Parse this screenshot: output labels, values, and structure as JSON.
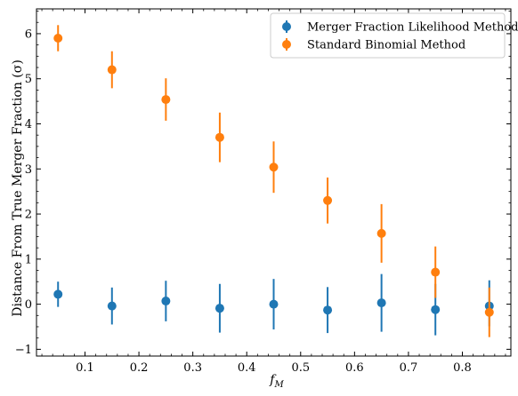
{
  "chart_data": {
    "type": "scatter",
    "title": "",
    "xlabel": "f",
    "xlabel_sub": "M",
    "ylabel": "Distance From True Merger Fraction (σ)",
    "xlim": [
      0.01,
      0.89
    ],
    "ylim": [
      -1.15,
      6.55
    ],
    "xticks": [
      0.1,
      0.2,
      0.3,
      0.4,
      0.5,
      0.6,
      0.7,
      0.8
    ],
    "yticks": [
      -1,
      0,
      1,
      2,
      3,
      4,
      5,
      6
    ],
    "grid": false,
    "legend_position": "top-right",
    "series": [
      {
        "name": "Merger Fraction Likelihood Method",
        "color": "#1f77b4",
        "x": [
          0.05,
          0.15,
          0.25,
          0.35,
          0.45,
          0.55,
          0.65,
          0.75,
          0.85
        ],
        "y": [
          0.22,
          -0.04,
          0.07,
          -0.09,
          0.0,
          -0.13,
          0.03,
          -0.12,
          -0.04
        ],
        "yerr_low": [
          0.28,
          0.41,
          0.45,
          0.54,
          0.56,
          0.51,
          0.64,
          0.57,
          0.45
        ],
        "yerr_high": [
          0.28,
          0.41,
          0.45,
          0.54,
          0.56,
          0.51,
          0.64,
          0.57,
          0.57
        ]
      },
      {
        "name": "Standard Binomial Method",
        "color": "#ff7f0e",
        "x": [
          0.05,
          0.15,
          0.25,
          0.35,
          0.45,
          0.55,
          0.65,
          0.75,
          0.85
        ],
        "y": [
          5.9,
          5.2,
          4.54,
          3.7,
          3.04,
          2.3,
          1.57,
          0.71,
          -0.18
        ],
        "yerr_low": [
          0.29,
          0.41,
          0.47,
          0.55,
          0.57,
          0.51,
          0.65,
          0.57,
          0.55
        ],
        "yerr_high": [
          0.29,
          0.41,
          0.47,
          0.55,
          0.57,
          0.51,
          0.65,
          0.57,
          0.55
        ]
      }
    ]
  }
}
